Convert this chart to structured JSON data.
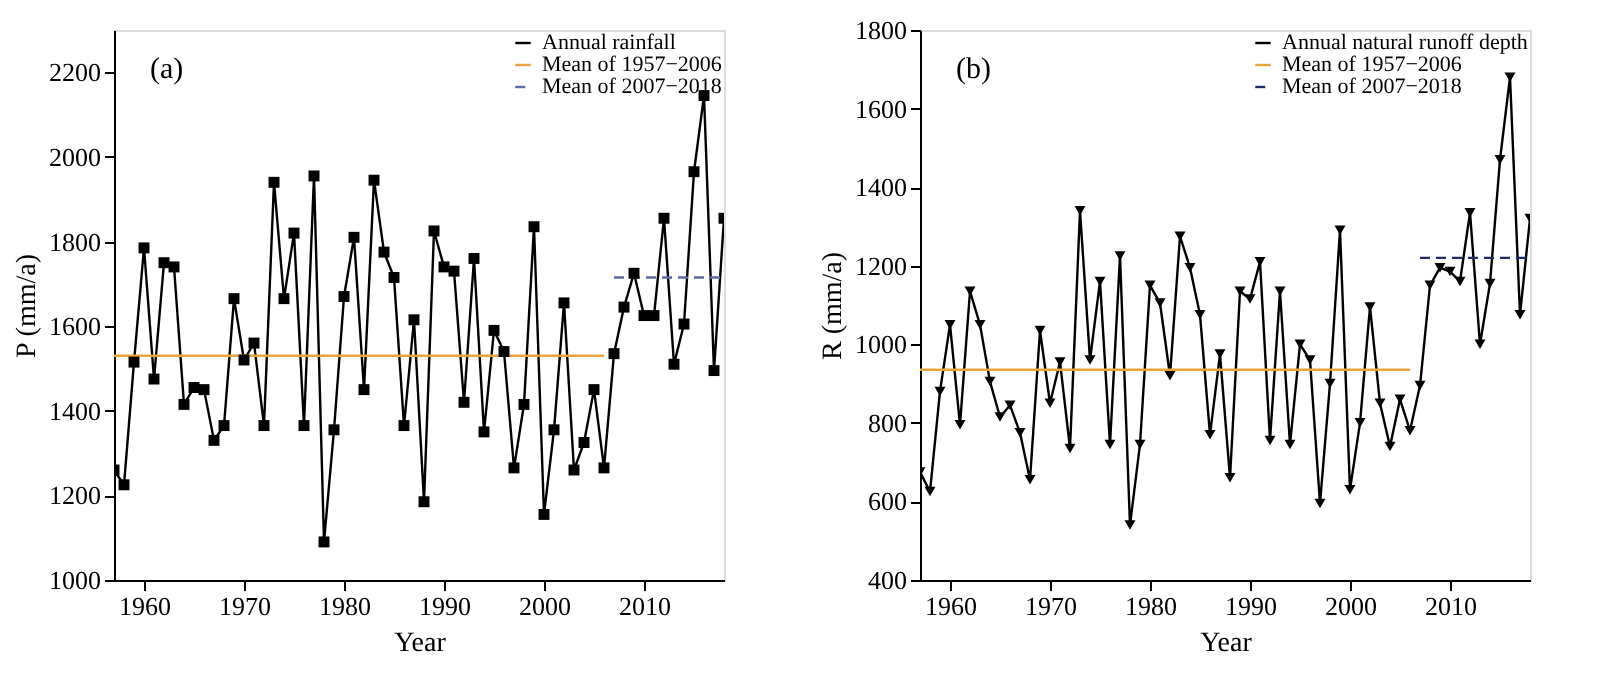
{
  "chart_data": [
    {
      "type": "line",
      "xlabel": "Year",
      "ylabel": "P (mm/a)",
      "annotations": [
        "(a)"
      ],
      "xlim": [
        1957,
        2018
      ],
      "xticks": [
        1960,
        1970,
        1980,
        1990,
        2000,
        2010
      ],
      "ylim": [
        1000,
        2300
      ],
      "yticks": [
        1000,
        1200,
        1400,
        1600,
        1800,
        2000,
        2200
      ],
      "grid": false,
      "legend": "top right",
      "x": [
        1957,
        1958,
        1959,
        1960,
        1961,
        1962,
        1963,
        1964,
        1965,
        1966,
        1967,
        1968,
        1969,
        1970,
        1971,
        1972,
        1973,
        1974,
        1975,
        1976,
        1977,
        1978,
        1979,
        1980,
        1981,
        1982,
        1983,
        1984,
        1985,
        1986,
        1987,
        1988,
        1989,
        1990,
        1991,
        1992,
        1993,
        1994,
        1995,
        1996,
        1997,
        1998,
        1999,
        2000,
        2001,
        2002,
        2003,
        2004,
        2005,
        2006,
        2007,
        2008,
        2009,
        2010,
        2011,
        2012,
        2013,
        2014,
        2015,
        2016,
        2017,
        2018
      ],
      "series": [
        {
          "name": "Annual rainfall",
          "color": "#000000",
          "marker": "square",
          "line_style": "solid",
          "values": [
            1260,
            1225,
            1515,
            1785,
            1475,
            1750,
            1740,
            1415,
            1455,
            1450,
            1330,
            1365,
            1665,
            1520,
            1560,
            1365,
            1940,
            1665,
            1820,
            1365,
            1955,
            1090,
            1355,
            1670,
            1810,
            1450,
            1945,
            1775,
            1715,
            1365,
            1615,
            1185,
            1825,
            1740,
            1730,
            1420,
            1760,
            1350,
            1590,
            1540,
            1265,
            1415,
            1835,
            1155,
            1355,
            1655,
            1260,
            1325,
            1450,
            1265,
            1535,
            1645,
            1725,
            1625,
            1625,
            1855,
            1510,
            1605,
            1965,
            2145,
            1495,
            1855
          ]
        },
        {
          "name": "Mean of 1957−2006",
          "color": "#e8a33c",
          "marker": "none",
          "line_style": "solid",
          "x": [
            1957,
            2006
          ],
          "values": [
            1530,
            1530
          ]
        },
        {
          "name": "Mean of 2007−2018",
          "color": "#5b6aa8",
          "marker": "none",
          "line_style": "dashed",
          "x": [
            2007,
            2018
          ],
          "values": [
            1715,
            1715
          ]
        }
      ]
    },
    {
      "type": "line",
      "xlabel": "Year",
      "ylabel": "R (mm/a)",
      "annotations": [
        "(b)"
      ],
      "xlim": [
        1957,
        2018
      ],
      "xticks": [
        1960,
        1970,
        1980,
        1990,
        2000,
        2010
      ],
      "ylim": [
        400,
        1800
      ],
      "yticks": [
        400,
        600,
        800,
        1000,
        1200,
        1400,
        1600,
        1800
      ],
      "grid": false,
      "legend": "top right",
      "x": [
        1957,
        1958,
        1959,
        1960,
        1961,
        1962,
        1963,
        1964,
        1965,
        1966,
        1967,
        1968,
        1969,
        1970,
        1971,
        1972,
        1973,
        1974,
        1975,
        1976,
        1977,
        1978,
        1979,
        1980,
        1981,
        1982,
        1983,
        1984,
        1985,
        1986,
        1987,
        1988,
        1989,
        1990,
        1991,
        1992,
        1993,
        1994,
        1995,
        1996,
        1997,
        1998,
        1999,
        2000,
        2001,
        2002,
        2003,
        2004,
        2005,
        2006,
        2007,
        2008,
        2009,
        2010,
        2011,
        2012,
        2013,
        2014,
        2015,
        2016,
        2017,
        2018
      ],
      "series": [
        {
          "name": "Annual natural runoff depth",
          "color": "#000000",
          "marker": "triangle",
          "line_style": "solid",
          "values": [
            675,
            625,
            880,
            1050,
            795,
            1135,
            1050,
            905,
            815,
            845,
            775,
            655,
            1035,
            850,
            955,
            735,
            1340,
            960,
            1160,
            745,
            1225,
            540,
            745,
            1150,
            1105,
            920,
            1275,
            1195,
            1075,
            770,
            975,
            660,
            1135,
            1115,
            1210,
            755,
            1135,
            745,
            1000,
            960,
            595,
            900,
            1290,
            630,
            800,
            1095,
            850,
            740,
            860,
            780,
            895,
            1150,
            1195,
            1185,
            1160,
            1335,
            1000,
            1155,
            1470,
            1680,
            1075,
            1320
          ]
        },
        {
          "name": "Mean of 1957−2006",
          "color": "#e8a33c",
          "marker": "none",
          "line_style": "solid",
          "x": [
            1957,
            2006
          ],
          "values": [
            935,
            935
          ]
        },
        {
          "name": "Mean of 2007−2018",
          "color": "#1f2a6b",
          "marker": "none",
          "line_style": "dashed",
          "x": [
            2007,
            2018
          ],
          "values": [
            1220,
            1220
          ]
        }
      ]
    }
  ]
}
